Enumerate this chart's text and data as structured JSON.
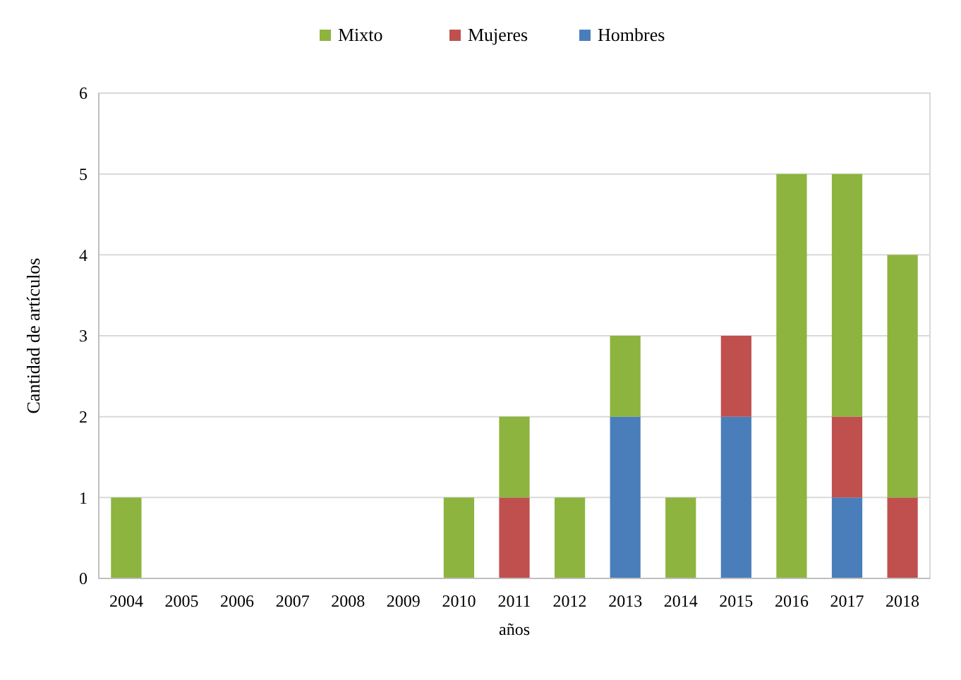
{
  "chart_data": {
    "type": "bar",
    "stacked": true,
    "xlabel": "años",
    "ylabel": "Cantidad de artículos",
    "categories": [
      "2004",
      "2005",
      "2006",
      "2007",
      "2008",
      "2009",
      "2010",
      "2011",
      "2012",
      "2013",
      "2014",
      "2015",
      "2016",
      "2017",
      "2018"
    ],
    "series": [
      {
        "name": "Hombres",
        "color": "#4a7ebb",
        "values": [
          0,
          0,
          0,
          0,
          0,
          0,
          0,
          0,
          0,
          2,
          0,
          2,
          0,
          1,
          0
        ]
      },
      {
        "name": "Mujeres",
        "color": "#c0504d",
        "values": [
          0,
          0,
          0,
          0,
          0,
          0,
          0,
          1,
          0,
          0,
          0,
          1,
          0,
          1,
          1
        ]
      },
      {
        "name": "Mixto",
        "color": "#8db43e",
        "values": [
          1,
          0,
          0,
          0,
          0,
          0,
          1,
          1,
          1,
          1,
          1,
          0,
          5,
          3,
          3
        ]
      }
    ],
    "ylim": [
      0,
      6
    ],
    "yticks": [
      0,
      1,
      2,
      3,
      4,
      5,
      6
    ],
    "grid": "y",
    "legend": "top"
  }
}
